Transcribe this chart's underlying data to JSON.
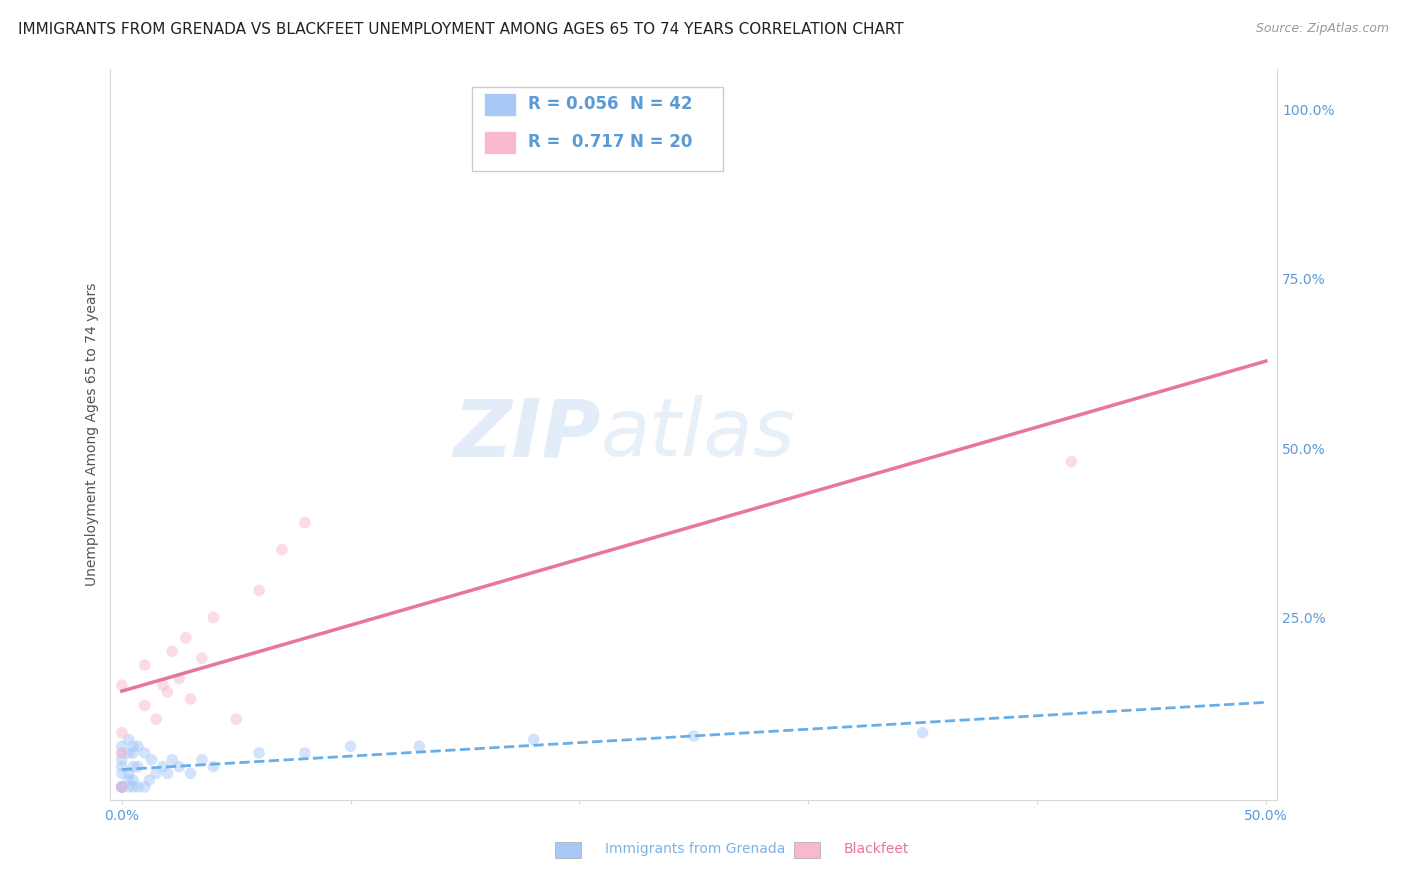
{
  "title": "IMMIGRANTS FROM GRENADA VS BLACKFEET UNEMPLOYMENT AMONG AGES 65 TO 74 YEARS CORRELATION CHART",
  "source": "Source: ZipAtlas.com",
  "ylabel": "Unemployment Among Ages 65 to 74 years",
  "xlim": [
    -0.005,
    0.505
  ],
  "ylim": [
    -0.02,
    1.06
  ],
  "xticks": [
    0.0,
    0.1,
    0.2,
    0.3,
    0.4,
    0.5
  ],
  "xtick_labels": [
    "0.0%",
    "",
    "",
    "",
    "",
    "50.0%"
  ],
  "yticks": [
    0.0,
    0.25,
    0.5,
    0.75,
    1.0
  ],
  "ytick_labels": [
    "",
    "25.0%",
    "50.0%",
    "75.0%",
    "100.0%"
  ],
  "legend_entries": [
    {
      "label": "Immigrants from Grenada",
      "R": "0.056",
      "N": "42",
      "color": "#a8c8f8"
    },
    {
      "label": "Blackfeet",
      "R": "0.717",
      "N": "20",
      "color": "#f9b8cc"
    }
  ],
  "background_color": "#ffffff",
  "grid_color": "#d8d8d8",
  "watermark_zip": "ZIP",
  "watermark_atlas": "atlas",
  "grenada_x": [
    0.0,
    0.0,
    0.0,
    0.0,
    0.0,
    0.0,
    0.0,
    0.0,
    0.0,
    0.0,
    0.003,
    0.003,
    0.003,
    0.003,
    0.003,
    0.005,
    0.005,
    0.005,
    0.005,
    0.005,
    0.007,
    0.007,
    0.007,
    0.01,
    0.01,
    0.012,
    0.013,
    0.015,
    0.018,
    0.02,
    0.022,
    0.025,
    0.03,
    0.035,
    0.04,
    0.06,
    0.08,
    0.1,
    0.13,
    0.18,
    0.25,
    0.35
  ],
  "grenada_y": [
    0.0,
    0.0,
    0.0,
    0.0,
    0.0,
    0.02,
    0.03,
    0.04,
    0.05,
    0.06,
    0.0,
    0.01,
    0.02,
    0.05,
    0.07,
    0.0,
    0.01,
    0.03,
    0.05,
    0.06,
    0.0,
    0.03,
    0.06,
    0.0,
    0.05,
    0.01,
    0.04,
    0.02,
    0.03,
    0.02,
    0.04,
    0.03,
    0.02,
    0.04,
    0.03,
    0.05,
    0.05,
    0.06,
    0.06,
    0.07,
    0.075,
    0.08
  ],
  "blackfeet_x": [
    0.0,
    0.0,
    0.0,
    0.0,
    0.01,
    0.01,
    0.015,
    0.018,
    0.02,
    0.022,
    0.025,
    0.028,
    0.03,
    0.035,
    0.04,
    0.05,
    0.06,
    0.07,
    0.08,
    0.415
  ],
  "blackfeet_y": [
    0.0,
    0.05,
    0.08,
    0.15,
    0.12,
    0.18,
    0.1,
    0.15,
    0.14,
    0.2,
    0.16,
    0.22,
    0.13,
    0.19,
    0.25,
    0.1,
    0.29,
    0.35,
    0.39,
    0.48
  ],
  "scatter_size": 70,
  "scatter_alpha": 0.5,
  "line_grenada_color": "#6aaee8",
  "line_blackfeet_color": "#e8759a",
  "title_fontsize": 11,
  "axis_label_fontsize": 10,
  "tick_fontsize": 10,
  "source_fontsize": 9
}
